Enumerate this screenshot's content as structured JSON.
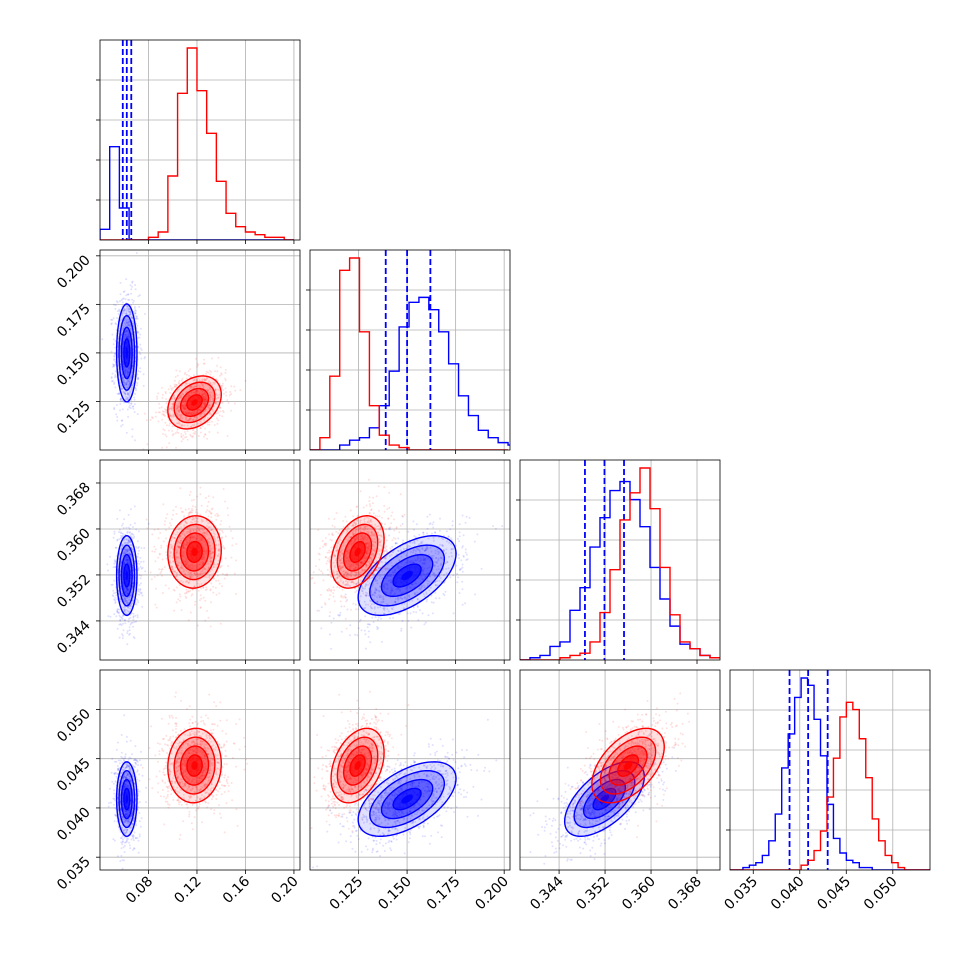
{
  "chart_data": {
    "type": "corner",
    "parameters": [
      {
        "xlim": [
          0.04,
          0.205
        ],
        "hist_xlim": [
          0.04,
          0.205
        ],
        "ticks": [
          0.08,
          0.12,
          0.16,
          0.2
        ],
        "tick_labels": [
          "0.08",
          "0.12",
          "0.16",
          "0.20"
        ]
      },
      {
        "xlim": [
          0.1,
          0.203
        ],
        "hist_xlim": [
          0.1,
          0.203
        ],
        "ticks": [
          0.125,
          0.15,
          0.175,
          0.2
        ],
        "tick_labels": [
          "0.125",
          "0.150",
          "0.175",
          "0.200"
        ]
      },
      {
        "xlim": [
          0.3372,
          0.372
        ],
        "hist_xlim": [
          0.3372,
          0.372
        ],
        "ticks": [
          0.344,
          0.352,
          0.36,
          0.368
        ],
        "tick_labels": [
          "0.344",
          "0.352",
          "0.360",
          "0.368"
        ]
      },
      {
        "xlim": [
          0.0337,
          0.054
        ],
        "hist_xlim": [
          0.0325,
          0.054
        ],
        "ticks": [
          0.035,
          0.04,
          0.045,
          0.05
        ],
        "tick_labels": [
          "0.035",
          "0.040",
          "0.045",
          "0.050"
        ]
      }
    ],
    "grid": true,
    "series": [
      {
        "color": "#0000ff",
        "quantiles": [
          [
            0.0588,
            0.0621,
            0.0658
          ],
          [
            0.139,
            0.15,
            0.162
          ],
          [
            0.3485,
            0.3519,
            0.3553
          ],
          [
            0.0389,
            0.0409,
            0.043
          ]
        ],
        "hist": [
          {
            "edges_from": 0.04,
            "step": 0.008,
            "counts": [
              4,
              35,
              12,
              0,
              0,
              0,
              0,
              0,
              0,
              0,
              0,
              0,
              0,
              0,
              0,
              0,
              0,
              0,
              0,
              0
            ]
          },
          {
            "edges_from": 0.1,
            "step": 0.0051,
            "counts": [
              0,
              0,
              0,
              2,
              4,
              5,
              9,
              18,
              32,
              50,
              60,
              62,
              57,
              48,
              35,
              22,
              14,
              8,
              5,
              3,
              2,
              1
            ]
          },
          {
            "edges_from": 0.3372,
            "step": 0.00174,
            "counts": [
              0,
              1,
              2,
              6,
              8,
              22,
              32,
              50,
              63,
              75,
              79,
              71,
              59,
              41,
              27,
              15,
              7,
              5,
              2,
              1
            ]
          },
          {
            "edges_from": 0.0325,
            "step": 0.000695,
            "counts": [
              0,
              0,
              1,
              2,
              3,
              6,
              12,
              23,
              42,
              56,
              71,
              79,
              76,
              62,
              47,
              27,
              13,
              7,
              4,
              3,
              1,
              1,
              0,
              0,
              0,
              0,
              0,
              0,
              0,
              0,
              0
            ]
          }
        ],
        "mean": [
          0.0621,
          0.15,
          0.3519,
          0.0409
        ],
        "std": [
          0.004,
          0.012,
          0.0033,
          0.0018
        ],
        "corr": {
          "1-0": 0.0,
          "2-0": 0.0,
          "3-0": 0.0,
          "2-1": 0.55,
          "3-1": 0.55,
          "3-2": 0.6
        }
      },
      {
        "color": "#ff0000",
        "quantiles": [],
        "hist": [
          {
            "edges_from": 0.04,
            "step": 0.008,
            "counts": [
              0,
              0,
              0,
              0,
              0,
              1,
              3,
              24,
              55,
              72,
              56,
              40,
              22,
              10,
              5,
              3,
              2,
              1,
              1,
              0
            ]
          },
          {
            "edges_from": 0.1,
            "step": 0.0051,
            "counts": [
              0,
              5,
              30,
              73,
              78,
              48,
              18,
              6,
              2,
              1,
              0,
              0,
              0,
              0,
              0,
              0,
              0,
              0,
              0,
              0
            ]
          },
          {
            "edges_from": 0.3372,
            "step": 0.00174,
            "counts": [
              0,
              0,
              0,
              0,
              1,
              2,
              3,
              8,
              21,
              40,
              62,
              74,
              85,
              67,
              41,
              20,
              8,
              5,
              2,
              1
            ]
          },
          {
            "edges_from": 0.0325,
            "step": 0.000695,
            "counts": [
              0,
              0,
              0,
              0,
              0,
              0,
              0,
              0,
              0,
              0,
              0,
              2,
              4,
              8,
              16,
              30,
              46,
              63,
              69,
              66,
              54,
              38,
              21,
              12,
              6,
              3,
              1,
              0,
              0,
              0,
              0
            ]
          }
        ],
        "mean": [
          0.118,
          0.1245,
          0.356,
          0.0443
        ],
        "std": [
          0.0105,
          0.0065,
          0.003,
          0.0018
        ],
        "corr": {
          "1-0": 0.3,
          "2-0": 0.05,
          "3-0": 0.05,
          "2-1": 0.35,
          "3-1": 0.35,
          "3-2": 0.5
        }
      }
    ]
  }
}
